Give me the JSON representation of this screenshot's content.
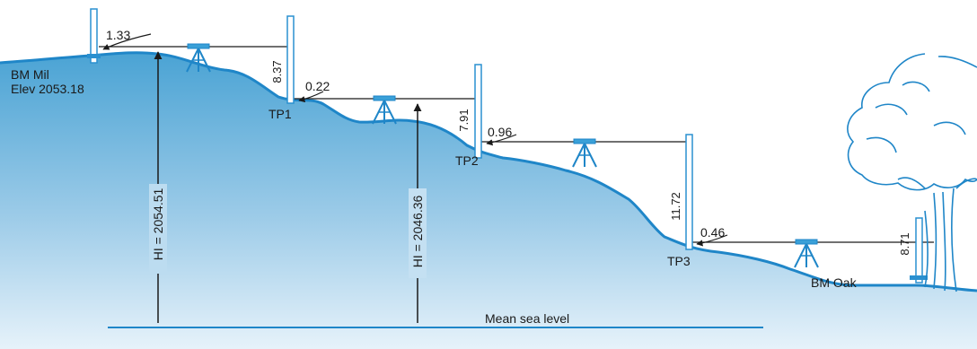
{
  "colors": {
    "ground_fill_top": "#4aa3d4",
    "ground_fill_bottom": "#e6f2fa",
    "ground_line": "#1f86c8",
    "rod": "#2a90d0",
    "ink": "#1a1a1a"
  },
  "benchmarks": {
    "start": {
      "name": "BM Mil",
      "elevation": "Elev 2053.18"
    },
    "end": {
      "name": "BM Oak"
    }
  },
  "turning_points": [
    "TP1",
    "TP2",
    "TP3"
  ],
  "readings": {
    "backsight_bm_mil": "1.33",
    "foresight_tp1": "8.37",
    "backsight_tp1": "0.22",
    "foresight_tp2": "7.91",
    "backsight_tp2": "0.96",
    "foresight_tp3": "11.72",
    "backsight_tp3": "0.46",
    "foresight_bm_oak": "8.71"
  },
  "instrument_heights": {
    "hi_1": "HI = 2054.51",
    "hi_2": "HI = 2046.36"
  },
  "datum": {
    "label": "Mean sea level"
  },
  "icons": [
    "tripod-level-icon",
    "leveling-rod-icon",
    "tree-icon"
  ]
}
